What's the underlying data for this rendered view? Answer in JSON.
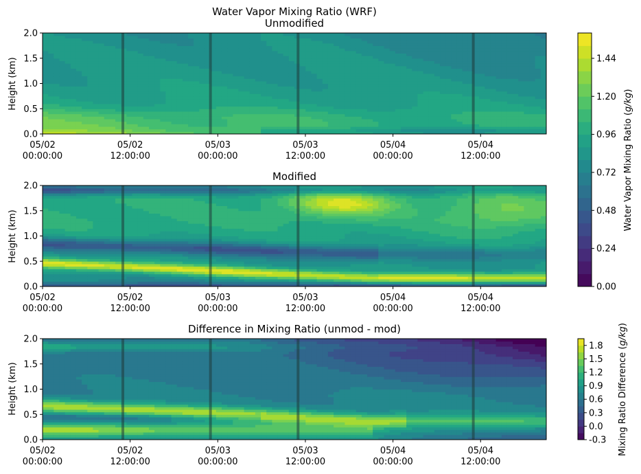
{
  "figure": {
    "suptitle": "Water Vapor Mixing Ratio (WRF)"
  },
  "chart_data": [
    {
      "type": "heatmap",
      "title": "Unmodified",
      "ylabel": "Height (km)",
      "xlabel": "",
      "ylim": [
        0,
        2.0
      ],
      "yticks": [
        "0.0",
        "0.5",
        "1.0",
        "1.5",
        "2.0"
      ],
      "xticks": [
        {
          "date": "05/02",
          "time": "00:00:00"
        },
        {
          "date": "05/02",
          "time": "12:00:00"
        },
        {
          "date": "05/03",
          "time": "00:00:00"
        },
        {
          "date": "05/03",
          "time": "12:00:00"
        },
        {
          "date": "05/04",
          "time": "00:00:00"
        },
        {
          "date": "05/04",
          "time": "12:00:00"
        }
      ],
      "colormap": "viridis",
      "vrange": [
        0,
        1.6
      ],
      "features": [
        {
          "kind": "moist-surface-layer",
          "height_top_km": 0.45,
          "value": 1.3
        },
        {
          "kind": "background",
          "value": 0.9
        }
      ],
      "vertical_markers_hours": [
        11,
        23,
        35,
        59
      ]
    },
    {
      "type": "heatmap",
      "title": "Modified",
      "ylabel": "Height (km)",
      "xlabel": "",
      "ylim": [
        0,
        2.0
      ],
      "yticks": [
        "0.0",
        "0.5",
        "1.0",
        "1.5",
        "2.0"
      ],
      "xticks": [
        {
          "date": "05/02",
          "time": "00:00:00"
        },
        {
          "date": "05/02",
          "time": "12:00:00"
        },
        {
          "date": "05/03",
          "time": "00:00:00"
        },
        {
          "date": "05/03",
          "time": "12:00:00"
        },
        {
          "date": "05/04",
          "time": "00:00:00"
        },
        {
          "date": "05/04",
          "time": "12:00:00"
        }
      ],
      "colormap": "viridis",
      "vrange": [
        0,
        1.6
      ],
      "features": [
        {
          "kind": "descending-moist-layer",
          "height_start_km": 0.45,
          "height_end_km": 0.15,
          "value": 1.45
        },
        {
          "kind": "dry-layer",
          "height_km": 0.85,
          "value": 0.25
        },
        {
          "kind": "dry-layer-top",
          "height_km": 1.85,
          "value": 0.15
        },
        {
          "kind": "moist-blob",
          "center_hour": 41,
          "height_km": 1.65,
          "value": 1.5
        }
      ],
      "vertical_markers_hours": [
        11,
        23,
        35,
        59
      ]
    },
    {
      "type": "heatmap",
      "title": "Difference in Mixing Ratio (unmod - mod)",
      "ylabel": "Height (km)",
      "xlabel": "",
      "ylim": [
        0,
        2.0
      ],
      "yticks": [
        "0.0",
        "0.5",
        "1.0",
        "1.5",
        "2.0"
      ],
      "xticks": [
        {
          "date": "05/02",
          "time": "00:00:00"
        },
        {
          "date": "05/02",
          "time": "12:00:00"
        },
        {
          "date": "05/03",
          "time": "00:00:00"
        },
        {
          "date": "05/03",
          "time": "12:00:00"
        },
        {
          "date": "05/04",
          "time": "00:00:00"
        },
        {
          "date": "05/04",
          "time": "12:00:00"
        }
      ],
      "colormap": "viridis",
      "vrange": [
        -0.3,
        1.9
      ],
      "features": [
        {
          "kind": "positive-band",
          "height_start_km": 0.7,
          "height_end_km": 0.4,
          "value": 1.7
        },
        {
          "kind": "positive-surface",
          "height_km": 0.15,
          "value": 1.6
        },
        {
          "kind": "negative-region",
          "region": "upper-right",
          "value": -0.2
        }
      ],
      "vertical_markers_hours": [
        11,
        23,
        35,
        59
      ]
    }
  ],
  "colorbars": [
    {
      "label": "Water Vapor Mixing Ratio (g/kg)",
      "ticks": [
        "0.00",
        "0.24",
        "0.48",
        "0.72",
        "0.96",
        "1.20",
        "1.44"
      ],
      "vmin": 0,
      "vmax": 1.6,
      "levels": 20
    },
    {
      "label": "Mixing Ratio Difference (g/kg)",
      "ticks": [
        "-0.3",
        "0.0",
        "0.3",
        "0.6",
        "0.9",
        "1.2",
        "1.5",
        "1.8"
      ],
      "vmin": -0.3,
      "vmax": 1.95,
      "levels": 15
    }
  ]
}
